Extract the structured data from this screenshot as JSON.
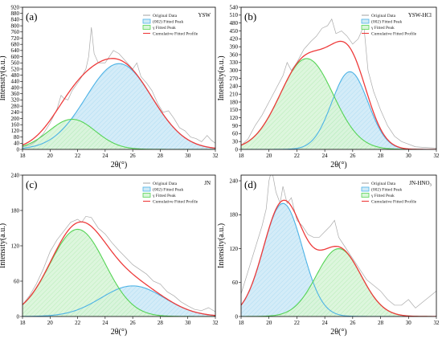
{
  "figure": {
    "background": "#ffffff"
  },
  "chart_data": [
    {
      "id": "a",
      "type": "line",
      "panel_label": "(a)",
      "sample": "YSW",
      "xlabel": "2θ(°)",
      "ylabel": "Intensity(a.u.)",
      "xlim": [
        18,
        32
      ],
      "ylim": [
        0,
        920
      ],
      "xticks": [
        18,
        20,
        22,
        24,
        26,
        28,
        30,
        32
      ],
      "yticks": [
        0,
        40,
        80,
        120,
        160,
        200,
        240,
        280,
        320,
        360,
        400,
        440,
        480,
        520,
        560,
        600,
        640,
        680,
        720,
        760,
        800,
        840,
        880,
        920
      ],
      "legend": [
        "Original Data",
        "(002) Fitted Peak",
        "γ Fitted Peak",
        "Cumulative Fitted Profile"
      ],
      "peaks": [
        {
          "name": "(002) Fitted Peak",
          "center": 25.0,
          "amplitude": 555,
          "sigma": 2.4,
          "color": "#4db3e6",
          "fill": "#cfeaf7"
        },
        {
          "name": "γ Fitted Peak",
          "center": 21.6,
          "amplitude": 195,
          "sigma": 1.7,
          "color": "#55d455",
          "fill": "#d9f5d9"
        }
      ],
      "cumulative_color": "#ee3b3b",
      "original_color": "#aaaaaa",
      "original_noise": [
        [
          18.0,
          18
        ],
        [
          18.5,
          25
        ],
        [
          19.0,
          55
        ],
        [
          19.5,
          100
        ],
        [
          20.0,
          170
        ],
        [
          20.5,
          260
        ],
        [
          20.8,
          350
        ],
        [
          21.0,
          330
        ],
        [
          21.3,
          320
        ],
        [
          21.6,
          380
        ],
        [
          22.0,
          430
        ],
        [
          22.3,
          470
        ],
        [
          22.6,
          520
        ],
        [
          22.8,
          600
        ],
        [
          23.0,
          790
        ],
        [
          23.2,
          620
        ],
        [
          23.5,
          560
        ],
        [
          24.0,
          560
        ],
        [
          24.3,
          600
        ],
        [
          24.6,
          640
        ],
        [
          25.0,
          620
        ],
        [
          25.3,
          590
        ],
        [
          25.6,
          560
        ],
        [
          26.0,
          520
        ],
        [
          26.3,
          560
        ],
        [
          26.6,
          470
        ],
        [
          27.0,
          430
        ],
        [
          27.4,
          380
        ],
        [
          27.8,
          300
        ],
        [
          28.2,
          240
        ],
        [
          28.6,
          250
        ],
        [
          29.0,
          200
        ],
        [
          29.4,
          140
        ],
        [
          29.8,
          120
        ],
        [
          30.2,
          80
        ],
        [
          30.6,
          70
        ],
        [
          31.0,
          50
        ],
        [
          31.4,
          90
        ],
        [
          31.7,
          60
        ],
        [
          32.0,
          40
        ]
      ]
    },
    {
      "id": "b",
      "type": "line",
      "panel_label": "(b)",
      "sample": "YSW-HCl",
      "xlabel": "2θ(°)",
      "ylabel": "Intensity(a.u.)",
      "xlim": [
        18,
        32
      ],
      "ylim": [
        0,
        540
      ],
      "xticks": [
        18,
        20,
        22,
        24,
        26,
        28,
        30,
        32
      ],
      "yticks": [
        0,
        30,
        60,
        90,
        120,
        150,
        180,
        210,
        240,
        270,
        300,
        330,
        360,
        390,
        420,
        450,
        480,
        510,
        540
      ],
      "legend": [
        "Original Data",
        "(002) Fitted Peak",
        "γ Fitted Peak",
        "Cumulative Fitted Profile"
      ],
      "peaks": [
        {
          "name": "(002) Fitted Peak",
          "center": 25.8,
          "amplitude": 295,
          "sigma": 1.3,
          "color": "#4db3e6",
          "fill": "#cfeaf7"
        },
        {
          "name": "γ Fitted Peak",
          "center": 22.7,
          "amplitude": 345,
          "sigma": 1.9,
          "color": "#55d455",
          "fill": "#d9f5d9"
        }
      ],
      "cumulative_color": "#ee3b3b",
      "original_color": "#aaaaaa",
      "original_noise": [
        [
          18.0,
          15
        ],
        [
          18.5,
          40
        ],
        [
          19.0,
          90
        ],
        [
          19.5,
          130
        ],
        [
          20.0,
          180
        ],
        [
          20.5,
          230
        ],
        [
          21.0,
          280
        ],
        [
          21.3,
          330
        ],
        [
          21.6,
          300
        ],
        [
          22.0,
          330
        ],
        [
          22.5,
          380
        ],
        [
          23.0,
          410
        ],
        [
          23.4,
          430
        ],
        [
          23.8,
          460
        ],
        [
          24.2,
          470
        ],
        [
          24.5,
          495
        ],
        [
          24.8,
          440
        ],
        [
          25.2,
          450
        ],
        [
          25.6,
          430
        ],
        [
          26.0,
          400
        ],
        [
          26.4,
          420
        ],
        [
          26.8,
          470
        ],
        [
          27.1,
          300
        ],
        [
          27.5,
          220
        ],
        [
          28.0,
          150
        ],
        [
          28.5,
          90
        ],
        [
          29.0,
          50
        ],
        [
          29.5,
          30
        ],
        [
          30.0,
          20
        ],
        [
          30.5,
          10
        ],
        [
          31.0,
          8
        ],
        [
          32.0,
          5
        ]
      ]
    },
    {
      "id": "c",
      "type": "line",
      "panel_label": "(c)",
      "sample": "JN",
      "xlabel": "2θ(°)",
      "ylabel": "Intensity(a.u.)",
      "xlim": [
        18,
        32
      ],
      "ylim": [
        0,
        240
      ],
      "xticks": [
        18,
        20,
        22,
        24,
        26,
        28,
        30,
        32
      ],
      "yticks": [
        0,
        60,
        120,
        180,
        240
      ],
      "legend": [
        "Original Data",
        "(002) Fitted Peak",
        "γ Fitted Peak",
        "Cumulative Fitted Profile"
      ],
      "peaks": [
        {
          "name": "(002) Fitted Peak",
          "center": 26.0,
          "amplitude": 52,
          "sigma": 2.3,
          "color": "#4db3e6",
          "fill": "#cfeaf7"
        },
        {
          "name": "γ Fitted Peak",
          "center": 22.0,
          "amplitude": 148,
          "sigma": 2.0,
          "color": "#55d455",
          "fill": "#d9f5d9"
        }
      ],
      "cumulative_color": "#ee3b3b",
      "original_color": "#aaaaaa",
      "original_noise": [
        [
          18.0,
          20
        ],
        [
          18.5,
          35
        ],
        [
          19.0,
          55
        ],
        [
          19.5,
          80
        ],
        [
          20.0,
          110
        ],
        [
          20.5,
          130
        ],
        [
          21.0,
          145
        ],
        [
          21.5,
          160
        ],
        [
          22.0,
          165
        ],
        [
          22.3,
          160
        ],
        [
          22.6,
          170
        ],
        [
          23.0,
          168
        ],
        [
          23.5,
          150
        ],
        [
          24.0,
          140
        ],
        [
          24.5,
          125
        ],
        [
          25.0,
          112
        ],
        [
          25.5,
          100
        ],
        [
          26.0,
          88
        ],
        [
          26.5,
          80
        ],
        [
          27.0,
          72
        ],
        [
          27.5,
          60
        ],
        [
          28.0,
          55
        ],
        [
          28.5,
          42
        ],
        [
          29.0,
          35
        ],
        [
          29.5,
          25
        ],
        [
          30.0,
          18
        ],
        [
          30.5,
          12
        ],
        [
          31.0,
          10
        ],
        [
          31.5,
          15
        ],
        [
          32.0,
          8
        ]
      ]
    },
    {
      "id": "d",
      "type": "line",
      "panel_label": "(d)",
      "sample": "JN-HNO₃",
      "xlabel": "2θ(°)",
      "ylabel": "Intensity(a.u.)",
      "xlim": [
        18,
        32
      ],
      "ylim": [
        0,
        250
      ],
      "xticks": [
        18,
        20,
        22,
        24,
        26,
        28,
        30,
        32
      ],
      "yticks": [
        0,
        60,
        120,
        180,
        240
      ],
      "legend": [
        "Original Data",
        "(002) Fitted Peak",
        "γ Fitted Peak",
        "Cumulative Fitted Profile"
      ],
      "peaks": [
        {
          "name": "(002) Fitted Peak",
          "center": 21.0,
          "amplitude": 200,
          "sigma": 1.4,
          "color": "#4db3e6",
          "fill": "#cfeaf7"
        },
        {
          "name": "γ Fitted Peak",
          "center": 25.0,
          "amplitude": 120,
          "sigma": 1.6,
          "color": "#55d455",
          "fill": "#d9f5d9"
        }
      ],
      "cumulative_color": "#ee3b3b",
      "original_color": "#aaaaaa",
      "original_noise": [
        [
          18.0,
          40
        ],
        [
          18.5,
          80
        ],
        [
          19.0,
          120
        ],
        [
          19.5,
          160
        ],
        [
          19.8,
          190
        ],
        [
          20.0,
          240
        ],
        [
          20.2,
          260
        ],
        [
          20.5,
          220
        ],
        [
          20.8,
          200
        ],
        [
          21.0,
          230
        ],
        [
          21.3,
          200
        ],
        [
          21.6,
          210
        ],
        [
          22.0,
          170
        ],
        [
          22.4,
          160
        ],
        [
          22.8,
          145
        ],
        [
          23.2,
          140
        ],
        [
          23.6,
          140
        ],
        [
          24.0,
          150
        ],
        [
          24.4,
          160
        ],
        [
          24.7,
          170
        ],
        [
          25.0,
          140
        ],
        [
          25.4,
          125
        ],
        [
          25.8,
          110
        ],
        [
          26.2,
          95
        ],
        [
          26.6,
          80
        ],
        [
          27.0,
          65
        ],
        [
          27.5,
          55
        ],
        [
          28.0,
          45
        ],
        [
          28.5,
          30
        ],
        [
          29.0,
          20
        ],
        [
          29.5,
          20
        ],
        [
          30.0,
          30
        ],
        [
          30.5,
          15
        ],
        [
          31.0,
          25
        ],
        [
          31.5,
          35
        ],
        [
          32.0,
          45
        ]
      ]
    }
  ]
}
